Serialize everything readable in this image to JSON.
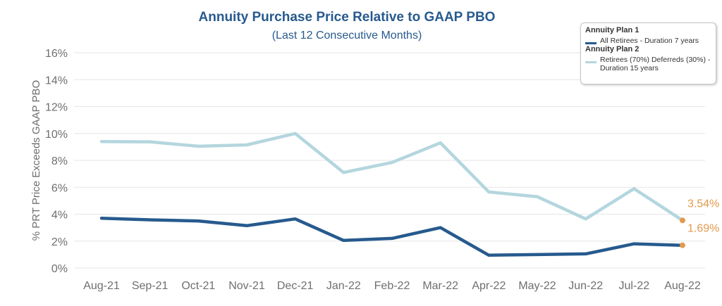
{
  "chart_data": {
    "type": "line",
    "title": "Annuity Purchase Price Relative to GAAP PBO",
    "subtitle": "(Last 12 Consecutive Months)",
    "xlabel": "",
    "ylabel": "% PRT Price Exceeds GAAP PBO",
    "ylim": [
      0,
      16
    ],
    "yticks": [
      "0%",
      "2%",
      "4%",
      "6%",
      "8%",
      "10%",
      "12%",
      "14%",
      "16%"
    ],
    "ytick_values": [
      0,
      2,
      4,
      6,
      8,
      10,
      12,
      14,
      16
    ],
    "grid": true,
    "legend_position": "top-right",
    "categories": [
      "Aug-21",
      "Sep-21",
      "Oct-21",
      "Nov-21",
      "Dec-21",
      "Jan-22",
      "Feb-22",
      "Mar-22",
      "Apr-22",
      "May-22",
      "Jun-22",
      "Jul-22",
      "Aug-22"
    ],
    "series": [
      {
        "key": "plan2",
        "legend_title": "Annuity Plan 2",
        "name": "Retirees (70%) Deferreds (30%) - Duration 15 years",
        "color": "#b4d6de",
        "values": [
          9.4,
          9.38,
          9.05,
          9.15,
          10.0,
          7.1,
          7.85,
          9.3,
          5.65,
          5.3,
          3.65,
          5.9,
          3.54
        ],
        "end_label": "3.54%"
      },
      {
        "key": "plan1",
        "legend_title": "Annuity Plan 1",
        "name": "All Retirees - Duration 7 years",
        "color": "#275a8e",
        "values": [
          3.7,
          3.58,
          3.5,
          3.15,
          3.65,
          2.05,
          2.2,
          3.0,
          0.95,
          1.0,
          1.05,
          1.8,
          1.69
        ],
        "end_label": "1.69%"
      }
    ]
  },
  "legend": {
    "plan1_title": "Annuity Plan 1",
    "plan1_text": "All Retirees - Duration 7 years",
    "plan2_title": "Annuity Plan 2",
    "plan2_text": "Retirees (70%) Deferreds (30%) - Duration 15 years"
  },
  "colors": {
    "title": "#275a8e",
    "endpoint": "#e39a4d",
    "grid": "#e6e6e6"
  }
}
